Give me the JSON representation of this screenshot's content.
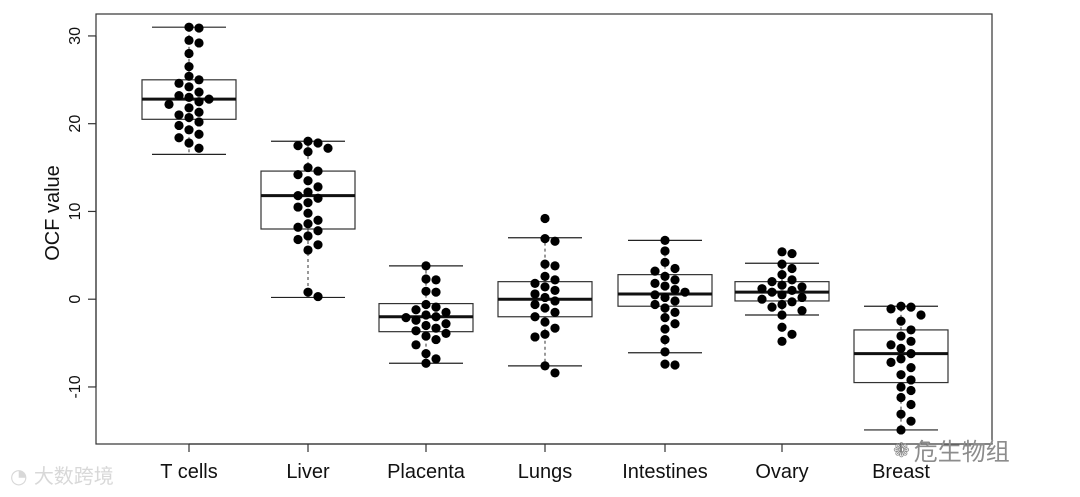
{
  "chart_data": {
    "type": "box",
    "ylabel": "OCF value",
    "ylim": [
      -16.5,
      32.5
    ],
    "yticks": [
      -10,
      0,
      10,
      20,
      30
    ],
    "categories": [
      "T cells",
      "Liver",
      "Placenta",
      "Lungs",
      "Intestines",
      "Ovary",
      "Breast"
    ],
    "boxes": [
      {
        "category": "T cells",
        "whisker_low": 16.5,
        "q1": 20.5,
        "median": 22.8,
        "q3": 25.0,
        "whisker_high": 31.0
      },
      {
        "category": "Liver",
        "whisker_low": 0.2,
        "q1": 8.0,
        "median": 11.8,
        "q3": 14.6,
        "whisker_high": 18.0
      },
      {
        "category": "Placenta",
        "whisker_low": -7.3,
        "q1": -3.7,
        "median": -2.0,
        "q3": -0.5,
        "whisker_high": 3.8
      },
      {
        "category": "Lungs",
        "whisker_low": -7.6,
        "q1": -2.0,
        "median": 0.0,
        "q3": 2.0,
        "whisker_high": 7.0
      },
      {
        "category": "Intestines",
        "whisker_low": -6.1,
        "q1": -0.8,
        "median": 0.6,
        "q3": 2.8,
        "whisker_high": 6.7
      },
      {
        "category": "Ovary",
        "whisker_low": -1.8,
        "q1": -0.2,
        "median": 0.8,
        "q3": 2.0,
        "whisker_high": 4.1
      },
      {
        "category": "Breast",
        "whisker_low": -14.9,
        "q1": -9.5,
        "median": -6.2,
        "q3": -3.5,
        "whisker_high": -0.8
      }
    ],
    "points": [
      [
        31.0,
        30.9,
        29.5,
        29.2,
        28.0,
        26.5,
        25.4,
        25.0,
        24.6,
        24.2,
        23.6,
        23.2,
        23.0,
        22.8,
        22.5,
        22.2,
        21.8,
        21.3,
        21.0,
        20.7,
        20.2,
        19.8,
        19.3,
        18.8,
        18.4,
        17.8,
        17.2
      ],
      [
        18.0,
        17.8,
        17.5,
        17.2,
        16.8,
        15.0,
        14.6,
        14.2,
        13.5,
        12.8,
        12.2,
        11.8,
        11.5,
        11.0,
        10.5,
        9.8,
        9.0,
        8.6,
        8.2,
        7.8,
        7.2,
        6.8,
        6.2,
        5.6,
        0.8,
        0.3
      ],
      [
        3.8,
        2.3,
        2.2,
        0.9,
        0.8,
        -0.6,
        -0.9,
        -1.2,
        -1.5,
        -1.8,
        -2.0,
        -2.1,
        -2.4,
        -2.8,
        -3.0,
        -3.3,
        -3.6,
        -3.9,
        -4.2,
        -4.6,
        -5.2,
        -6.2,
        -6.8,
        -7.3
      ],
      [
        9.2,
        6.9,
        6.6,
        4.0,
        3.8,
        2.6,
        2.2,
        1.8,
        1.4,
        1.0,
        0.6,
        0.2,
        -0.2,
        -0.6,
        -1.0,
        -1.5,
        -2.0,
        -2.6,
        -3.3,
        -4.0,
        -4.3,
        -7.6,
        -8.4
      ],
      [
        6.7,
        5.5,
        4.2,
        3.5,
        3.2,
        2.6,
        2.2,
        1.8,
        1.5,
        1.1,
        0.8,
        0.5,
        0.2,
        -0.2,
        -0.6,
        -1.0,
        -1.5,
        -2.1,
        -2.8,
        -3.4,
        -4.6,
        -6.0,
        -7.4,
        -7.5
      ],
      [
        5.4,
        5.2,
        4.0,
        3.5,
        2.8,
        2.2,
        2.0,
        1.6,
        1.4,
        1.2,
        1.0,
        0.8,
        0.5,
        0.2,
        0.0,
        -0.3,
        -0.6,
        -0.9,
        -1.3,
        -1.8,
        -3.2,
        -4.0,
        -4.8
      ],
      [
        -0.8,
        -0.9,
        -1.1,
        -1.8,
        -2.5,
        -3.5,
        -4.2,
        -4.8,
        -5.2,
        -5.6,
        -6.2,
        -6.8,
        -7.2,
        -7.8,
        -8.6,
        -9.2,
        -10.0,
        -10.4,
        -11.2,
        -12.0,
        -13.1,
        -13.9,
        -14.9
      ]
    ]
  },
  "watermarks": {
    "left": "大数跨境",
    "right": "危生物组"
  }
}
